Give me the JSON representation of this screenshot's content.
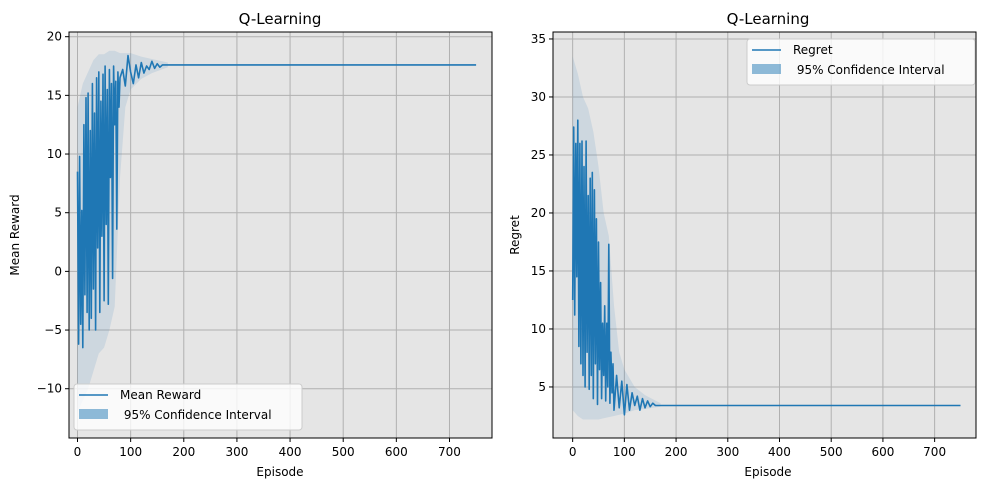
{
  "chart_data": [
    {
      "type": "line",
      "title": "Q-Learning",
      "xlabel": "Episode",
      "ylabel": "Mean Reward",
      "xlim": [
        -16,
        780
      ],
      "ylim": [
        -14.2,
        20.4
      ],
      "xticks": [
        0,
        100,
        200,
        300,
        400,
        500,
        600,
        700
      ],
      "yticks": [
        -10,
        -5,
        0,
        5,
        10,
        15,
        20
      ],
      "grid": true,
      "legend_position": "lower-left",
      "series": [
        {
          "name": "Mean Reward",
          "color": "#1f77b4",
          "x": [
            0,
            2,
            4,
            6,
            8,
            10,
            12,
            14,
            16,
            18,
            20,
            22,
            24,
            26,
            28,
            30,
            32,
            34,
            36,
            38,
            40,
            42,
            44,
            46,
            48,
            50,
            52,
            54,
            56,
            58,
            60,
            62,
            64,
            66,
            68,
            70,
            72,
            74,
            76,
            78,
            80,
            85,
            90,
            95,
            100,
            105,
            110,
            115,
            120,
            125,
            130,
            135,
            140,
            145,
            150,
            155,
            160,
            165,
            170,
            750
          ],
          "y": [
            8.5,
            -6.2,
            9.8,
            -4.5,
            5.2,
            -6.5,
            12.5,
            -2.0,
            14.8,
            -3.5,
            15.2,
            -5.0,
            12.0,
            -4.0,
            16.0,
            -1.5,
            13.5,
            -5.0,
            16.5,
            2.0,
            17.0,
            -3.5,
            14.5,
            3.0,
            16.8,
            -2.5,
            17.5,
            4.0,
            15.5,
            -2.8,
            17.2,
            8.0,
            16.0,
            -0.6,
            17.5,
            12.5,
            16.2,
            3.6,
            17.0,
            14.0,
            16.5,
            17.2,
            15.8,
            18.4,
            17.0,
            16.0,
            17.6,
            16.5,
            17.8,
            16.9,
            17.5,
            17.2,
            17.9,
            17.3,
            17.7,
            17.4,
            17.6,
            17.6,
            17.6,
            17.6
          ]
        }
      ],
      "confidence_interval": {
        "name": " 95% Confidence Interval",
        "color": "#1f77b4",
        "x": [
          0,
          10,
          20,
          30,
          40,
          50,
          60,
          70,
          80,
          90,
          100,
          120,
          140,
          170
        ],
        "lower": [
          -12.0,
          -11.0,
          -10.0,
          -8.5,
          -7.0,
          -6.5,
          -5.0,
          -3.0,
          8.0,
          14.0,
          15.5,
          16.4,
          16.9,
          17.4
        ],
        "upper": [
          14.0,
          16.0,
          17.0,
          18.0,
          18.5,
          18.5,
          18.8,
          18.8,
          18.6,
          18.6,
          18.6,
          18.3,
          18.1,
          17.8
        ]
      }
    },
    {
      "type": "line",
      "title": "Q-Learning",
      "xlabel": "Episode",
      "ylabel": "Regret",
      "xlim": [
        -38,
        780
      ],
      "ylim": [
        0.6,
        35.6
      ],
      "xticks": [
        0,
        100,
        200,
        300,
        400,
        500,
        600,
        700
      ],
      "yticks": [
        5,
        10,
        15,
        20,
        25,
        30,
        35
      ],
      "grid": true,
      "legend_position": "upper-right",
      "series": [
        {
          "name": "Regret",
          "color": "#1f77b4",
          "x": [
            0,
            2,
            4,
            6,
            8,
            10,
            12,
            14,
            16,
            18,
            20,
            22,
            24,
            26,
            28,
            30,
            32,
            34,
            36,
            38,
            40,
            42,
            44,
            46,
            48,
            50,
            52,
            54,
            56,
            58,
            60,
            62,
            64,
            66,
            68,
            70,
            72,
            74,
            76,
            78,
            80,
            85,
            90,
            95,
            100,
            105,
            110,
            115,
            120,
            125,
            130,
            135,
            140,
            145,
            150,
            155,
            160,
            165,
            170,
            750
          ],
          "y": [
            12.5,
            27.4,
            11.2,
            26.0,
            14.5,
            28.0,
            8.5,
            26.0,
            7.0,
            26.2,
            6.0,
            24.0,
            5.0,
            26.2,
            8.0,
            21.5,
            4.8,
            23.0,
            6.0,
            23.5,
            4.0,
            22.0,
            7.0,
            19.5,
            3.5,
            17.5,
            6.5,
            14.0,
            4.0,
            10.5,
            6.0,
            12.0,
            3.8,
            10.5,
            5.0,
            17.3,
            3.6,
            8.0,
            4.5,
            7.0,
            3.0,
            6.0,
            3.2,
            5.5,
            2.6,
            5.2,
            3.0,
            4.5,
            3.4,
            4.2,
            3.0,
            4.0,
            3.2,
            3.8,
            3.3,
            3.6,
            3.4,
            3.4,
            3.4,
            3.4
          ]
        }
      ],
      "confidence_interval": {
        "name": " 95% Confidence Interval",
        "color": "#1f77b4",
        "x": [
          0,
          10,
          20,
          30,
          40,
          50,
          60,
          70,
          80,
          90,
          100,
          120,
          140,
          170
        ],
        "lower": [
          3.0,
          2.5,
          2.2,
          2.2,
          2.2,
          2.2,
          2.3,
          2.4,
          2.5,
          2.6,
          2.7,
          3.0,
          3.1,
          3.3
        ],
        "upper": [
          33.5,
          32.0,
          30.0,
          29.0,
          27.0,
          24.0,
          20.0,
          18.0,
          12.0,
          8.0,
          6.5,
          5.0,
          4.3,
          3.6
        ]
      }
    }
  ]
}
